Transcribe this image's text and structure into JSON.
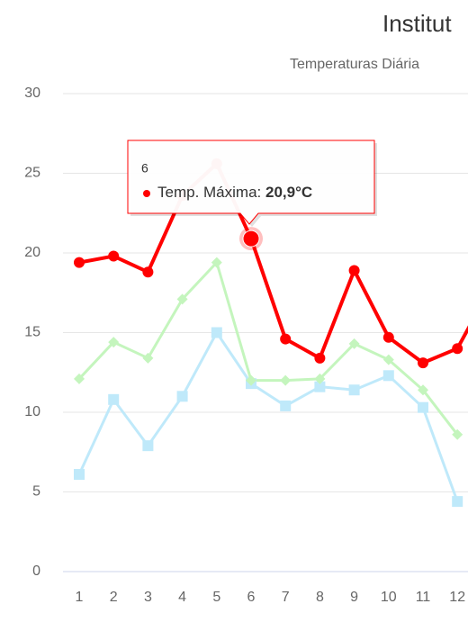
{
  "chart_data": {
    "type": "line",
    "title": "Institut",
    "subtitle": "Temperaturas Diária",
    "categories": [
      "1",
      "2",
      "3",
      "4",
      "5",
      "6",
      "7",
      "8",
      "9",
      "10",
      "11",
      "12"
    ],
    "ylim": [
      0,
      30
    ],
    "yticks": [
      0,
      5,
      10,
      15,
      20,
      25,
      30
    ],
    "grid": true,
    "series": [
      {
        "name": "Temp. Máxima",
        "color": "#ff0000",
        "values": [
          19.4,
          19.8,
          18.8,
          23.6,
          25.6,
          20.9,
          14.6,
          13.4,
          18.9,
          14.7,
          13.1,
          14.0
        ]
      },
      {
        "color": "#c4f5bd",
        "values": [
          12.1,
          14.4,
          13.4,
          17.1,
          19.4,
          12.0,
          12.0,
          12.1,
          14.3,
          13.3,
          11.4,
          8.6
        ]
      },
      {
        "color": "#bfe9fa",
        "values": [
          6.1,
          10.8,
          7.9,
          11.0,
          15.0,
          11.8,
          10.4,
          11.6,
          11.4,
          12.3,
          10.3,
          4.4
        ]
      }
    ],
    "tooltip": {
      "value_label": "20,9°C"
    }
  }
}
